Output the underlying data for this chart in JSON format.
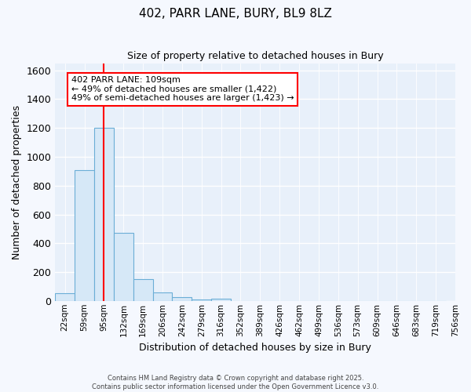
{
  "title": "402, PARR LANE, BURY, BL9 8LZ",
  "subtitle": "Size of property relative to detached houses in Bury",
  "xlabel": "Distribution of detached houses by size in Bury",
  "ylabel": "Number of detached properties",
  "bar_color": "#d6e8f7",
  "bar_edge_color": "#6baed6",
  "background_color": "#e8f0fa",
  "figure_background": "#f5f8fe",
  "bin_labels": [
    "22sqm",
    "59sqm",
    "95sqm",
    "132sqm",
    "169sqm",
    "206sqm",
    "242sqm",
    "279sqm",
    "316sqm",
    "352sqm",
    "389sqm",
    "426sqm",
    "462sqm",
    "499sqm",
    "536sqm",
    "573sqm",
    "609sqm",
    "646sqm",
    "683sqm",
    "719sqm",
    "756sqm"
  ],
  "bar_values": [
    55,
    910,
    1200,
    470,
    150,
    60,
    28,
    12,
    15,
    0,
    0,
    0,
    0,
    0,
    0,
    0,
    0,
    0,
    0,
    0
  ],
  "ylim": [
    0,
    1650
  ],
  "yticks": [
    0,
    200,
    400,
    600,
    800,
    1000,
    1200,
    1400,
    1600
  ],
  "red_line_x": 2.0,
  "annotation_text": "402 PARR LANE: 109sqm\n← 49% of detached houses are smaller (1,422)\n49% of semi-detached houses are larger (1,423) →",
  "footer_line1": "Contains HM Land Registry data © Crown copyright and database right 2025.",
  "footer_line2": "Contains public sector information licensed under the Open Government Licence v3.0."
}
